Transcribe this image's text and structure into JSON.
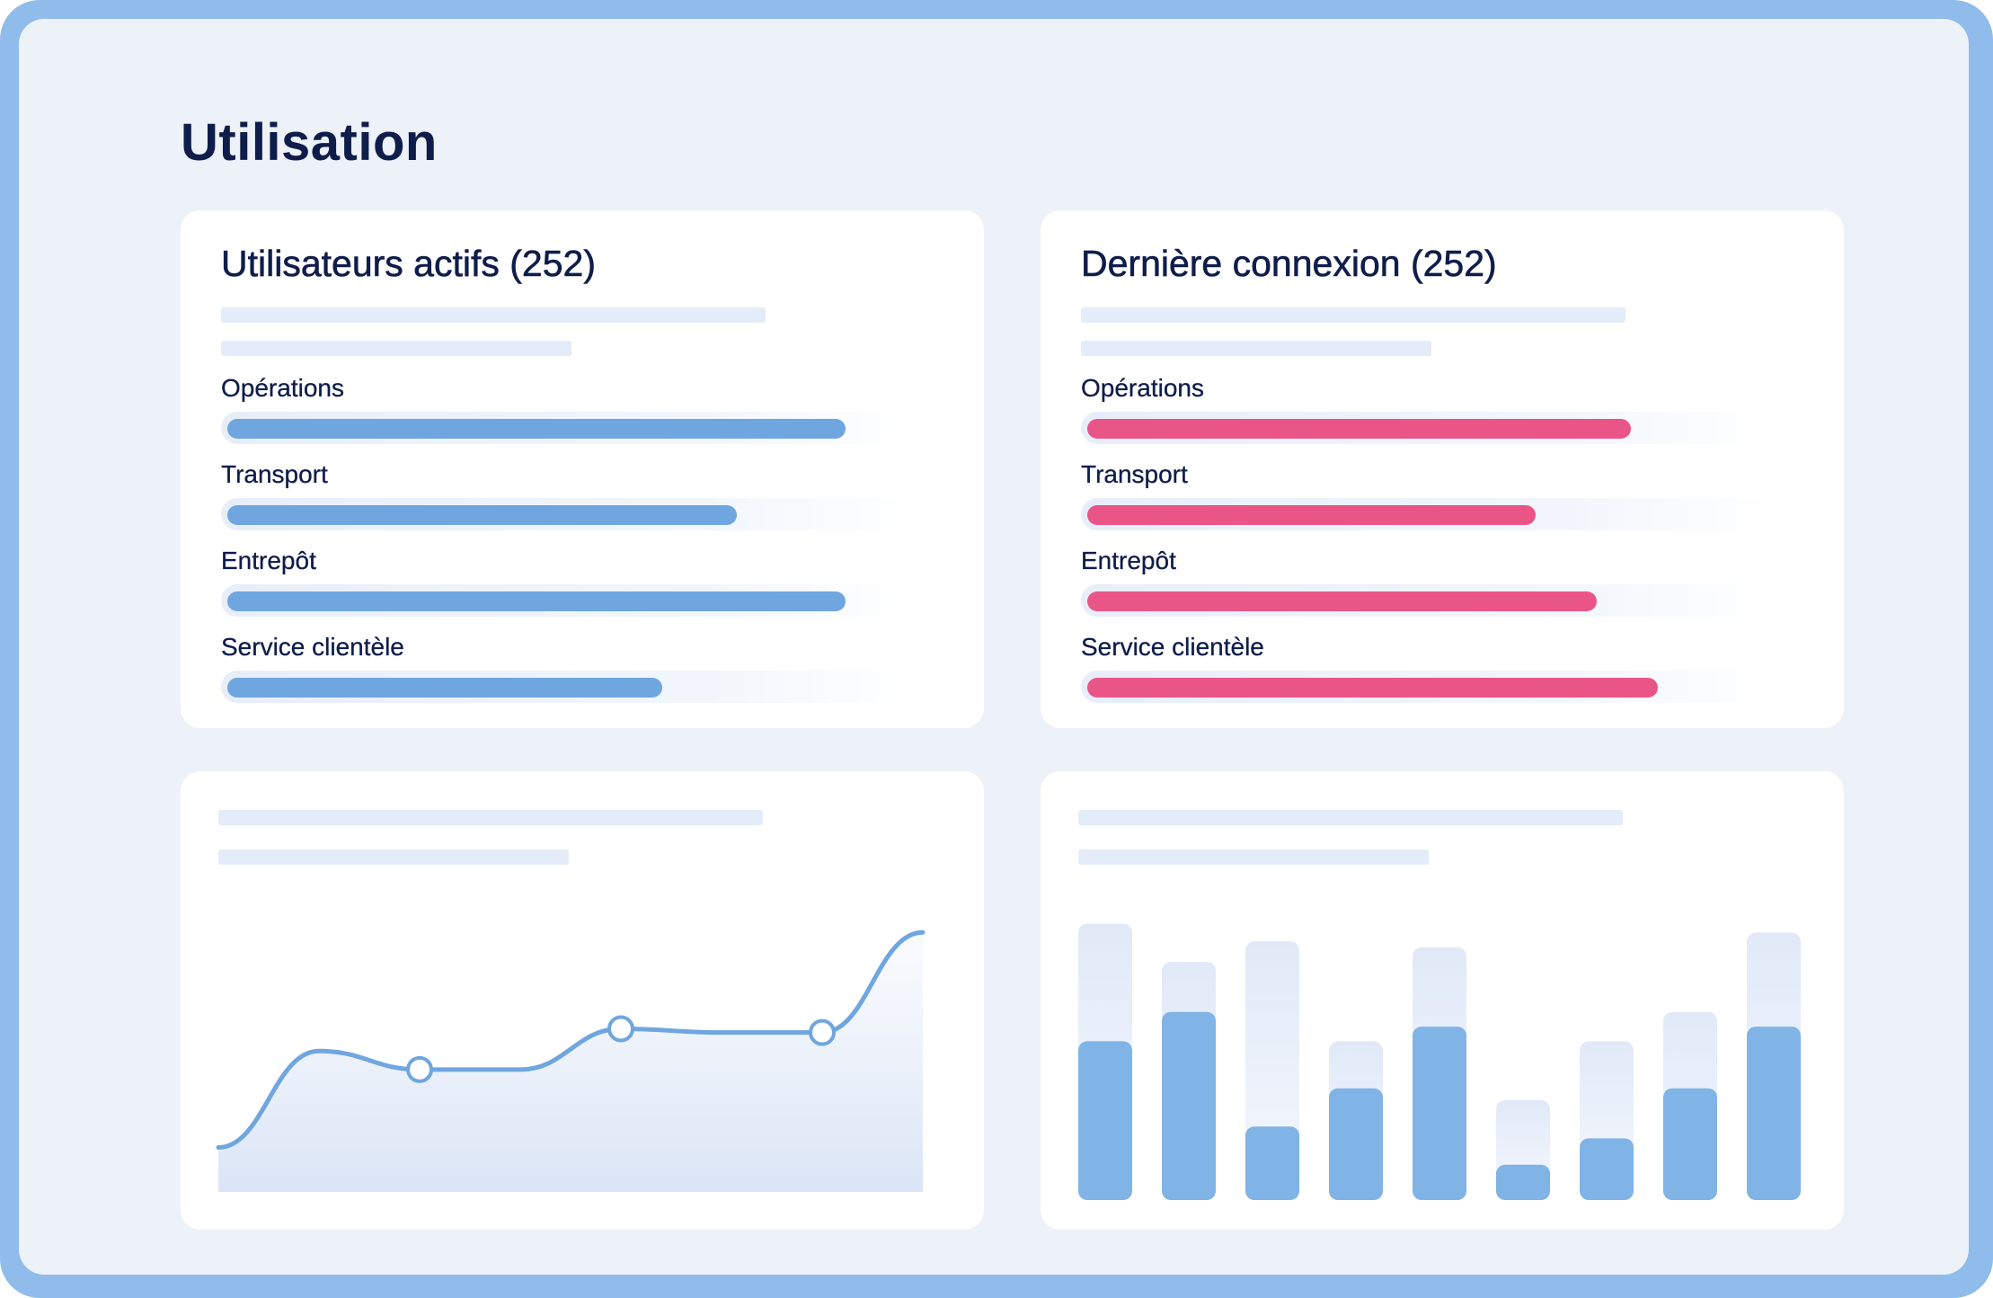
{
  "page": {
    "title": "Utilisation"
  },
  "colors": {
    "frame": "#8fbceb",
    "accent_blue": "#6fa6e0",
    "accent_pink": "#ea5587",
    "title": "#0f1d4a"
  },
  "active_users": {
    "title": "Utilisateurs actifs (252)",
    "rows": [
      {
        "label": "Opérations",
        "fraction": 0.91
      },
      {
        "label": "Transport",
        "fraction": 0.75
      },
      {
        "label": "Entrepôt",
        "fraction": 0.91
      },
      {
        "label": "Service clientèle",
        "fraction": 0.64
      }
    ]
  },
  "last_login": {
    "title": "Dernière connexion (252)",
    "rows": [
      {
        "label": "Opérations",
        "fraction": 0.8
      },
      {
        "label": "Transport",
        "fraction": 0.66
      },
      {
        "label": "Entrepôt",
        "fraction": 0.75
      },
      {
        "label": "Service clientèle",
        "fraction": 0.84
      }
    ]
  },
  "chart_data": [
    {
      "type": "line",
      "x": [
        0,
        1,
        2,
        3,
        4,
        5,
        6,
        7
      ],
      "values": [
        12,
        38,
        33,
        33,
        44,
        43,
        43,
        70
      ],
      "markers_at": [
        2,
        4,
        6
      ],
      "ylim": [
        0,
        80
      ],
      "grid": false
    },
    {
      "type": "bar",
      "categories": [
        "1",
        "2",
        "3",
        "4",
        "5",
        "6",
        "7",
        "8",
        "9"
      ],
      "series": [
        {
          "values": [
            54,
            64,
            25,
            38,
            59,
            12,
            21,
            38,
            59
          ]
        },
        {
          "values": [
            94,
            81,
            88,
            54,
            86,
            34,
            54,
            64,
            91
          ]
        }
      ],
      "ylim": [
        0,
        100
      ],
      "grid": false
    }
  ]
}
